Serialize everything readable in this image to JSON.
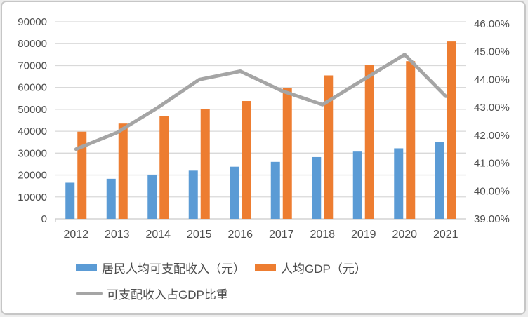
{
  "frame": {
    "background": "#ffffff",
    "border_color": "#c6c6c6",
    "text_color": "#4d4d4d",
    "gridline_color": "#d9d9d9",
    "baseline_color": "#c9c9c9"
  },
  "chart_data": {
    "type": "bar",
    "subtype": "combo-bar-line-dual-axis",
    "title": "",
    "xlabel": "",
    "ylabel": "",
    "grid": true,
    "legend_position": "bottom-left",
    "categories": [
      "2012",
      "2013",
      "2014",
      "2015",
      "2016",
      "2017",
      "2018",
      "2019",
      "2020",
      "2021"
    ],
    "series": [
      {
        "name": "居民人均可支配收入（元）",
        "type": "bar",
        "axis": "left",
        "color": "#5B9BD5",
        "values": [
          16500,
          18300,
          20200,
          22000,
          23800,
          26000,
          28200,
          30700,
          32200,
          35100
        ]
      },
      {
        "name": "人均GDP（元）",
        "type": "bar",
        "axis": "left",
        "color": "#ED7D31",
        "values": [
          39800,
          43500,
          47000,
          50000,
          53800,
          59600,
          65500,
          70300,
          72000,
          81000
        ]
      },
      {
        "name": "可支配收入占GDP比重",
        "type": "line",
        "axis": "right",
        "color": "#A5A5A5",
        "values": [
          41.5,
          42.1,
          43.0,
          44.0,
          44.3,
          43.6,
          43.1,
          44.0,
          44.9,
          43.4
        ]
      }
    ],
    "left_axis": {
      "min": 0,
      "max": 90000,
      "step": 10000,
      "tick_labels": [
        "0",
        "10000",
        "20000",
        "30000",
        "40000",
        "50000",
        "60000",
        "70000",
        "80000",
        "90000"
      ]
    },
    "right_axis": {
      "min": 39,
      "max": 46,
      "step": 1,
      "tick_labels": [
        "39.00%",
        "40.00%",
        "41.00%",
        "42.00%",
        "43.00%",
        "44.00%",
        "45.00%",
        "46.00%"
      ]
    }
  },
  "legend": {
    "items": [
      {
        "label": "居民人均可支配收入（元）",
        "marker": "square",
        "color": "#5B9BD5"
      },
      {
        "label": "人均GDP（元）",
        "marker": "square",
        "color": "#ED7D31"
      },
      {
        "label": "可支配收入占GDP比重",
        "marker": "line",
        "color": "#A5A5A5"
      }
    ]
  }
}
